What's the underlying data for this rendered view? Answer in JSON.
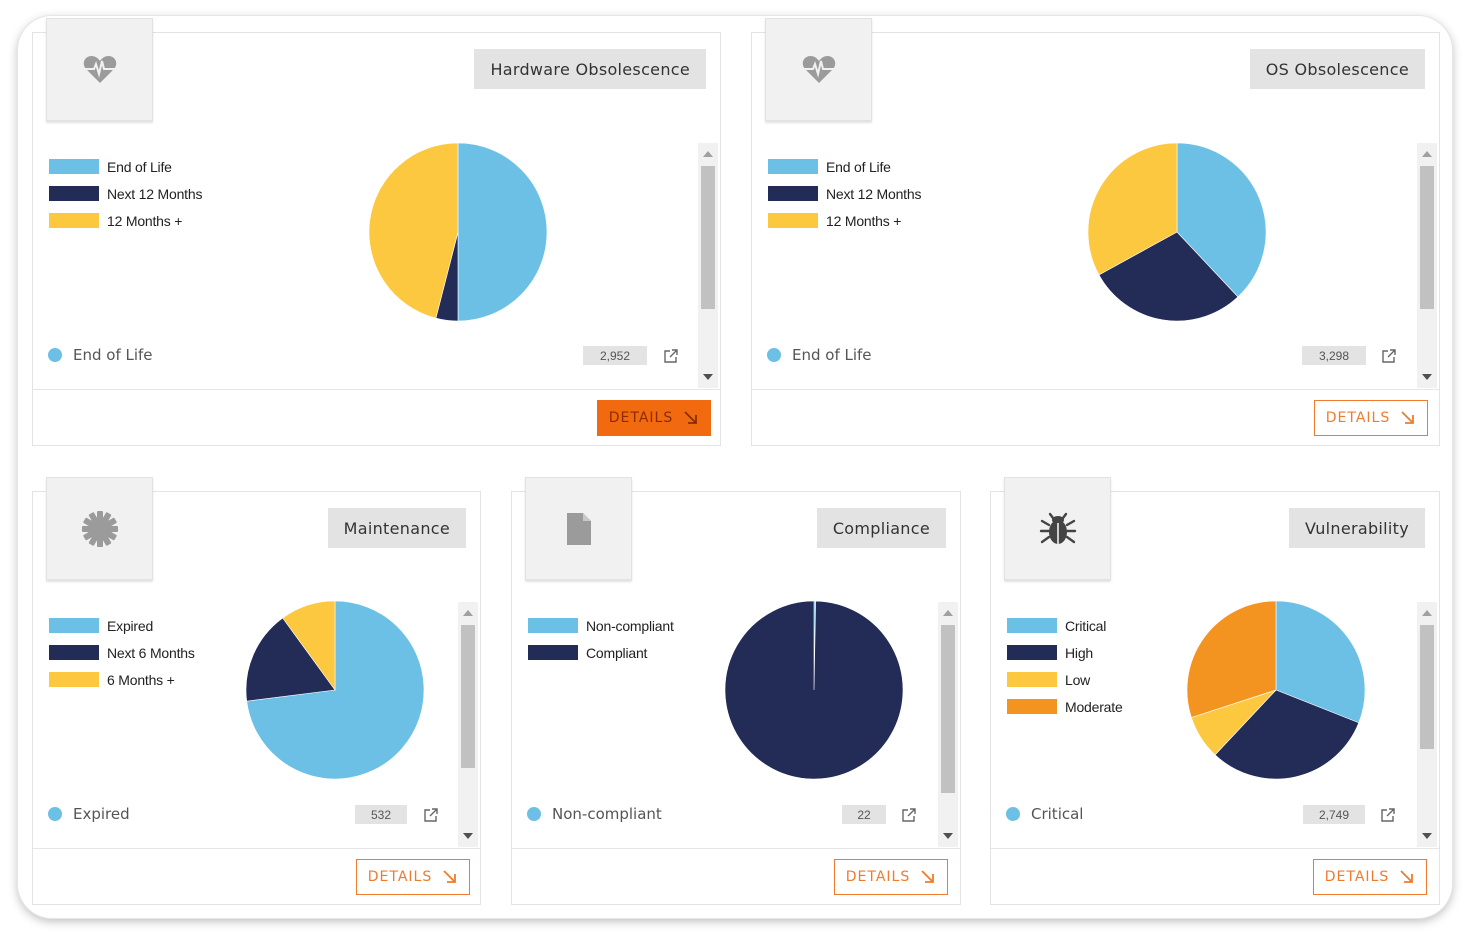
{
  "colors": {
    "light_blue": "#6cc0e5",
    "navy": "#232b57",
    "yellow": "#fbc840",
    "orange": "#f39421",
    "accent": "#f07b2c",
    "accent_active": "#f26a10"
  },
  "cards": {
    "hardware": {
      "title": "Hardware Obsolescence",
      "icon": "heartbeat-icon",
      "legend": [
        "End of Life",
        "Next 12 Months",
        "12 Months +"
      ],
      "status_label": "End of Life",
      "count": "2,952",
      "details_label": "DETAILS",
      "details_active": true
    },
    "os": {
      "title": "OS Obsolescence",
      "icon": "heartbeat-icon",
      "legend": [
        "End of Life",
        "Next 12 Months",
        "12 Months +"
      ],
      "status_label": "End of Life",
      "count": "3,298",
      "details_label": "DETAILS",
      "details_active": false
    },
    "maintenance": {
      "title": "Maintenance",
      "icon": "gear-icon",
      "legend": [
        "Expired",
        "Next 6 Months",
        "6 Months +"
      ],
      "status_label": "Expired",
      "count": "532",
      "details_label": "DETAILS",
      "details_active": false
    },
    "compliance": {
      "title": "Compliance",
      "icon": "document-icon",
      "legend": [
        "Non-compliant",
        "Compliant"
      ],
      "status_label": "Non-compliant",
      "count": "22",
      "details_label": "DETAILS",
      "details_active": false
    },
    "vulnerability": {
      "title": "Vulnerability",
      "icon": "bug-icon",
      "legend": [
        "Critical",
        "High",
        "Low",
        "Moderate"
      ],
      "status_label": "Critical",
      "count": "2,749",
      "details_label": "DETAILS",
      "details_active": false
    }
  },
  "chart_data": [
    {
      "type": "pie",
      "title": "Hardware Obsolescence",
      "categories": [
        "End of Life",
        "Next 12 Months",
        "12 Months +"
      ],
      "values": [
        50,
        4,
        46
      ],
      "colors": [
        "#6cc0e5",
        "#232b57",
        "#fbc840"
      ]
    },
    {
      "type": "pie",
      "title": "OS Obsolescence",
      "categories": [
        "End of Life",
        "Next 12 Months",
        "12 Months +"
      ],
      "values": [
        38,
        29,
        33
      ],
      "colors": [
        "#6cc0e5",
        "#232b57",
        "#fbc840"
      ]
    },
    {
      "type": "pie",
      "title": "Maintenance",
      "categories": [
        "Expired",
        "Next 6 Months",
        "6 Months +"
      ],
      "values": [
        73,
        17,
        10
      ],
      "colors": [
        "#6cc0e5",
        "#232b57",
        "#fbc840"
      ]
    },
    {
      "type": "pie",
      "title": "Compliance",
      "categories": [
        "Non-compliant",
        "Compliant"
      ],
      "values": [
        0.3,
        99.7
      ],
      "colors": [
        "#6cc0e5",
        "#232b57"
      ]
    },
    {
      "type": "pie",
      "title": "Vulnerability",
      "categories": [
        "Critical",
        "High",
        "Low",
        "Moderate"
      ],
      "values": [
        31,
        31,
        8,
        30
      ],
      "colors": [
        "#6cc0e5",
        "#232b57",
        "#fbc840",
        "#f39421"
      ]
    }
  ]
}
